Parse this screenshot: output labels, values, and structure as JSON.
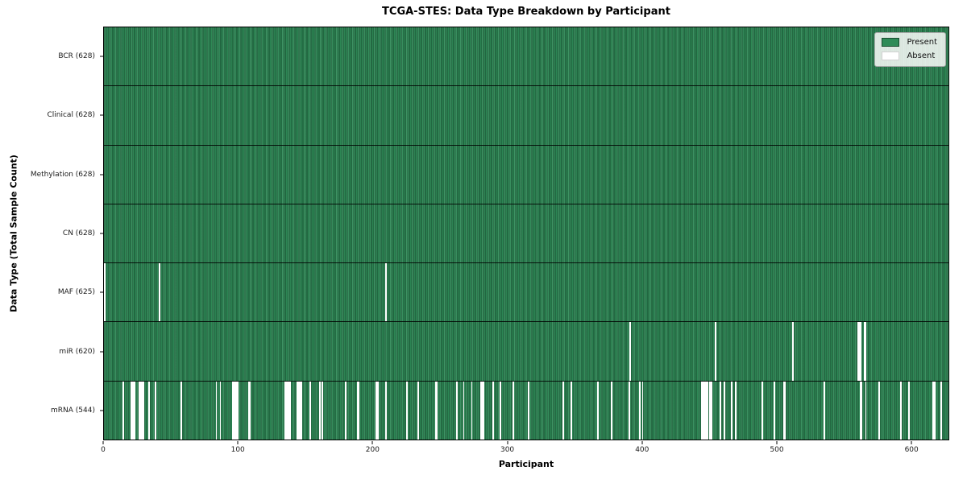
{
  "figure": {
    "title": "TCGA-STES: Data Type Breakdown by Participant",
    "xlabel": "Participant",
    "ylabel": "Data Type (Total Sample Count)"
  },
  "chart_data": {
    "type": "heatmap",
    "title": "TCGA-STES: Data Type Breakdown by Participant",
    "xlabel": "Participant",
    "ylabel": "Data Type (Total Sample Count)",
    "n_participants": 628,
    "xlim": [
      0,
      628
    ],
    "x_ticks": [
      0,
      100,
      200,
      300,
      400,
      500,
      600
    ],
    "grid": false,
    "legend_position": "upper right",
    "legend_items": [
      {
        "label": "Present",
        "color": "#2e8b57"
      },
      {
        "label": "Absent",
        "color": "#ffffff"
      }
    ],
    "colors": {
      "present": "#2e8b57",
      "absent": "#ffffff",
      "edge": "#000000"
    },
    "rows": [
      {
        "name": "BCR",
        "label": "BCR (628)",
        "present_count": 628,
        "absent_participants": []
      },
      {
        "name": "Clinical",
        "label": "Clinical (628)",
        "present_count": 628,
        "absent_participants": []
      },
      {
        "name": "Methylation",
        "label": "Methylation (628)",
        "present_count": 628,
        "absent_participants": []
      },
      {
        "name": "CN",
        "label": "CN (628)",
        "present_count": 628,
        "absent_participants": []
      },
      {
        "name": "MAF",
        "label": "MAF (625)",
        "present_count": 625,
        "absent_participants": [
          0,
          41,
          209
        ]
      },
      {
        "name": "miR",
        "label": "miR (620)",
        "present_count": 620,
        "absent_participants": [
          391,
          454,
          512,
          560,
          561,
          562,
          565,
          566
        ]
      },
      {
        "name": "mRNA",
        "label": "mRNA (544)",
        "present_count": 544,
        "absent_participants": [
          14,
          20,
          21,
          22,
          26,
          27,
          28,
          29,
          33,
          38,
          57,
          83,
          86,
          95,
          96,
          97,
          98,
          99,
          107,
          108,
          134,
          135,
          136,
          137,
          138,
          143,
          144,
          145,
          146,
          153,
          160,
          162,
          179,
          188,
          189,
          202,
          203,
          209,
          225,
          233,
          246,
          247,
          262,
          267,
          273,
          280,
          281,
          282,
          289,
          294,
          304,
          315,
          341,
          347,
          367,
          377,
          390,
          398,
          400,
          444,
          445,
          446,
          447,
          448,
          450,
          451,
          458,
          461,
          466,
          469,
          489,
          498,
          505,
          506,
          535,
          562,
          563,
          566,
          576,
          592,
          598,
          616,
          617,
          622
        ]
      }
    ]
  }
}
